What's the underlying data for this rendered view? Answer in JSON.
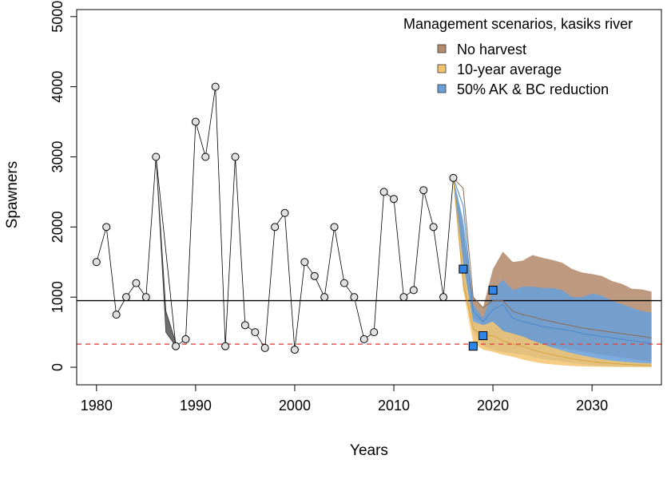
{
  "chart_data": {
    "type": "line",
    "title": "",
    "xlabel": "Years",
    "ylabel": "Spawners",
    "xlim": [
      1978,
      2037
    ],
    "ylim": [
      0,
      5000
    ],
    "x_ticks": [
      1980,
      1990,
      2000,
      2010,
      2020,
      2030
    ],
    "y_ticks": [
      0,
      1000,
      2000,
      3000,
      4000,
      5000
    ],
    "legend": {
      "title": "Management scenarios, kasiks river",
      "position": "top-right",
      "entries": [
        {
          "label": "No harvest",
          "color": "#b38b6d"
        },
        {
          "label": "10-year average",
          "color": "#f5c46e"
        },
        {
          "label": "50% AK & BC reduction",
          "color": "#6a9fd8"
        }
      ]
    },
    "observed": {
      "x": [
        1980,
        1981,
        1982,
        1983,
        1984,
        1985,
        1986,
        1988,
        1989,
        1990,
        1991,
        1992,
        1993,
        1994,
        1995,
        1996,
        1997,
        1998,
        1999,
        2000,
        2001,
        2002,
        2003,
        2004,
        2005,
        2006,
        2007,
        2008,
        2009,
        2010,
        2011,
        2012,
        2013,
        2014,
        2015,
        2016
      ],
      "y": [
        1500,
        2000,
        750,
        1000,
        1200,
        1000,
        3000,
        300,
        400,
        3500,
        3000,
        4000,
        300,
        3000,
        600,
        500,
        275,
        2000,
        2200,
        250,
        1500,
        1300,
        1000,
        2000,
        1200,
        1000,
        400,
        500,
        2500,
        2400,
        1000,
        1100,
        2525,
        2000,
        1000,
        2700
      ]
    },
    "recent_observed": {
      "x": [
        2017,
        2018,
        2019,
        2020
      ],
      "y": [
        1400,
        300,
        450,
        1100
      ]
    },
    "reference_lines": {
      "upper": 950,
      "lower": 330
    },
    "early_band": {
      "x": [
        1986,
        1987,
        1988
      ],
      "lower": [
        3000,
        500,
        300
      ],
      "upper": [
        3000,
        800,
        350
      ]
    },
    "projection_years": [
      2016,
      2017,
      2018,
      2019,
      2020,
      2021,
      2022,
      2023,
      2024,
      2025,
      2026,
      2027,
      2028,
      2029,
      2030,
      2031,
      2032,
      2033,
      2034,
      2035,
      2036
    ],
    "bands": [
      {
        "name": "No harvest",
        "color": "#b38b6d",
        "lower": [
          2700,
          1100,
          700,
          600,
          450,
          400,
          380,
          360,
          330,
          310,
          290,
          270,
          250,
          230,
          200,
          180,
          160,
          140,
          120,
          100,
          80
        ],
        "upper": [
          2700,
          2000,
          1000,
          850,
          1400,
          1650,
          1500,
          1520,
          1600,
          1560,
          1530,
          1490,
          1400,
          1350,
          1330,
          1300,
          1230,
          1190,
          1120,
          1110,
          1080
        ]
      },
      {
        "name": "10-year average",
        "color": "#f5c46e",
        "lower": [
          2700,
          1100,
          350,
          250,
          220,
          180,
          150,
          110,
          80,
          55,
          40,
          28,
          18,
          12,
          8,
          6,
          5,
          4,
          3,
          2,
          2
        ],
        "upper": [
          2700,
          1500,
          650,
          600,
          650,
          520,
          480,
          440,
          380,
          330,
          280,
          240,
          200,
          170,
          140,
          115,
          95,
          80,
          70,
          60,
          55
        ]
      },
      {
        "name": "50% AK & BC reduction",
        "color": "#6a9fd8",
        "lower": [
          2700,
          1200,
          500,
          300,
          250,
          220,
          200,
          180,
          150,
          120,
          100,
          80,
          60,
          45,
          30,
          20,
          15,
          10,
          8,
          6,
          5
        ],
        "upper": [
          2700,
          2100,
          900,
          700,
          1100,
          1250,
          1100,
          1150,
          1150,
          1130,
          1130,
          1100,
          1000,
          1000,
          1050,
          1020,
          950,
          900,
          850,
          800,
          780
        ]
      }
    ],
    "median_lines": [
      {
        "color": "#8a6a50",
        "y": [
          2700,
          2550,
          1000,
          850,
          950,
          950,
          800,
          750,
          720,
          680,
          650,
          620,
          590,
          560,
          540,
          520,
          500,
          480,
          460,
          440,
          420
        ]
      },
      {
        "color": "#d9a43a",
        "y": [
          2700,
          1200,
          550,
          450,
          450,
          380,
          330,
          300,
          250,
          210,
          180,
          150,
          120,
          100,
          80,
          65,
          55,
          45,
          38,
          32,
          28
        ]
      },
      {
        "color": "#4a86c8",
        "y": [
          2700,
          2300,
          800,
          650,
          820,
          900,
          700,
          650,
          620,
          580,
          560,
          540,
          520,
          480,
          460,
          440,
          420,
          400,
          380,
          360,
          340
        ]
      }
    ]
  }
}
